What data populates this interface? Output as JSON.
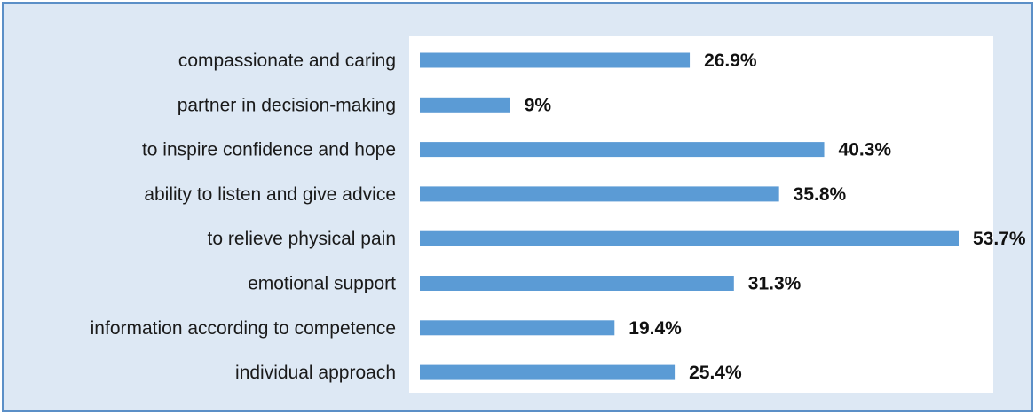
{
  "chart_data": {
    "type": "bar",
    "orientation": "horizontal",
    "title": "",
    "xlabel": "",
    "ylabel": "",
    "categories": [
      "compassionate and caring",
      "partner in decision-making",
      "to inspire confidence and hope",
      "ability to listen and give advice",
      "to relieve physical pain",
      "emotional support",
      "information according to competence",
      "individual approach"
    ],
    "values": [
      26.9,
      9,
      40.3,
      35.8,
      53.7,
      31.3,
      19.4,
      25.4
    ],
    "value_labels": [
      "26.9%",
      "9%",
      "40.3%",
      "35.8%",
      "53.7%",
      "31.3%",
      "19.4%",
      "25.4%"
    ],
    "xlim": [
      0,
      53.7
    ],
    "grid": false,
    "legend": "none"
  },
  "colors": {
    "bar": "#5b9bd5",
    "background": "#dde8f4",
    "plot_area": "#ffffff",
    "border": "#5b8fc7"
  }
}
